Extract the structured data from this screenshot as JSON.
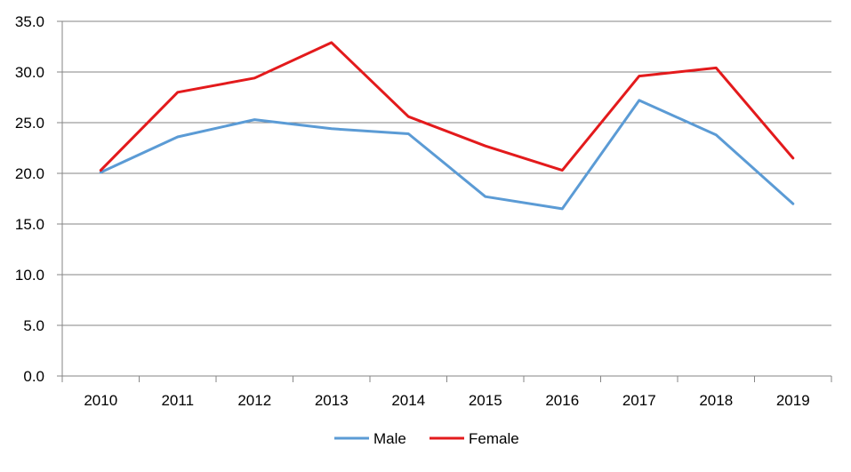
{
  "chart_data": {
    "type": "line",
    "categories": [
      "2010",
      "2011",
      "2012",
      "2013",
      "2014",
      "2015",
      "2016",
      "2017",
      "2018",
      "2019"
    ],
    "series": [
      {
        "name": "Male",
        "color": "#5b9bd5",
        "values": [
          20.1,
          23.6,
          25.3,
          24.4,
          23.9,
          17.7,
          16.5,
          27.2,
          23.8,
          17.0
        ]
      },
      {
        "name": "Female",
        "color": "#e31a1c",
        "values": [
          20.3,
          28.0,
          29.4,
          32.9,
          25.6,
          22.7,
          20.3,
          29.6,
          30.4,
          21.5
        ]
      }
    ],
    "ylim": [
      0,
      35
    ],
    "ytick_labels": [
      "0.0",
      "5.0",
      "10.0",
      "15.0",
      "20.0",
      "25.0",
      "30.0",
      "35.0"
    ],
    "grid": true,
    "legend_position": "bottom",
    "title": "",
    "xlabel": "",
    "ylabel": ""
  }
}
